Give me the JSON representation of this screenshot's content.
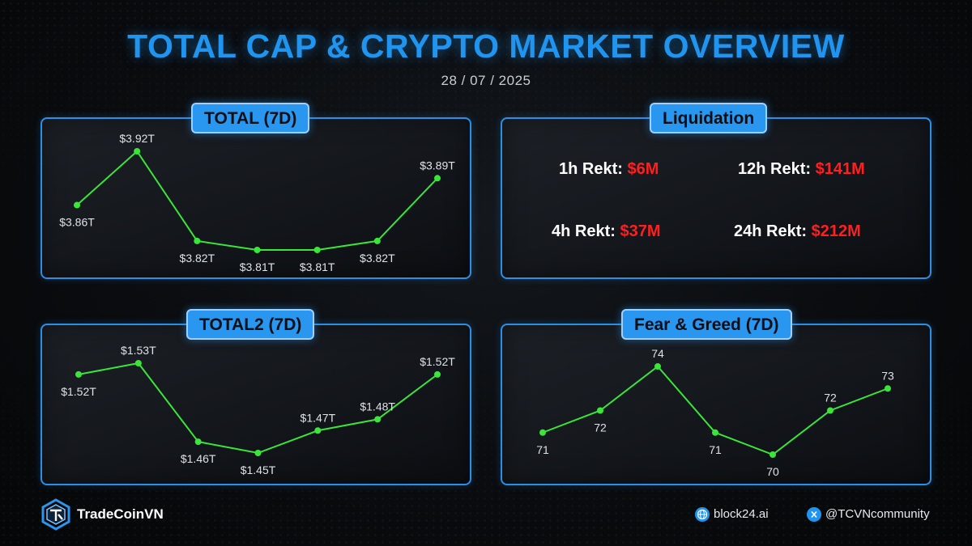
{
  "header": {
    "title": "TOTAL CAP & CRYPTO MARKET OVERVIEW",
    "date": "28 / 07 / 2025"
  },
  "colors": {
    "accent": "#2996f0",
    "line": "#39e639",
    "rekt": "#ff1f1f"
  },
  "liquidation": {
    "title": "Liquidation",
    "items": [
      {
        "label": "1h Rekt: ",
        "value": "$6M"
      },
      {
        "label": "12h Rekt: ",
        "value": "$141M"
      },
      {
        "label": "4h Rekt: ",
        "value": "$37M"
      },
      {
        "label": "24h Rekt: ",
        "value": "$212M"
      }
    ]
  },
  "chart_data": [
    {
      "type": "line",
      "title": "TOTAL (7D)",
      "values": [
        3.86,
        3.92,
        3.82,
        3.81,
        3.81,
        3.82,
        3.89
      ],
      "labels": [
        "$3.86T",
        "$3.92T",
        "$3.82T",
        "$3.81T",
        "$3.81T",
        "$3.82T",
        "$3.89T"
      ],
      "label_pos": [
        "below",
        "above",
        "below",
        "below",
        "below",
        "below",
        "above"
      ],
      "ylim": [
        3.81,
        3.92
      ],
      "grid": false
    },
    {
      "type": "line",
      "title": "TOTAL2 (7D)",
      "values": [
        1.52,
        1.53,
        1.46,
        1.45,
        1.47,
        1.48,
        1.52
      ],
      "labels": [
        "$1.52T",
        "$1.53T",
        "$1.46T",
        "$1.45T",
        "$1.47T",
        "$1.48T",
        "$1.52T"
      ],
      "label_pos": [
        "below",
        "above",
        "below",
        "below",
        "above",
        "above",
        "above"
      ],
      "ylim": [
        1.45,
        1.53
      ],
      "grid": false
    },
    {
      "type": "line",
      "title": "Fear & Greed (7D)",
      "values": [
        71,
        72,
        74,
        71,
        70,
        72,
        73
      ],
      "labels": [
        "71",
        "72",
        "74",
        "71",
        "70",
        "72",
        "73"
      ],
      "label_pos": [
        "below",
        "below",
        "above",
        "below",
        "below",
        "above",
        "above"
      ],
      "ylim": [
        70,
        74
      ],
      "grid": false
    }
  ],
  "footer": {
    "brand": "TradeCoinVN",
    "site": "block24.ai",
    "social": "@TCVNcommunity",
    "site_icon": "globe-icon",
    "social_icon": "x-icon"
  }
}
